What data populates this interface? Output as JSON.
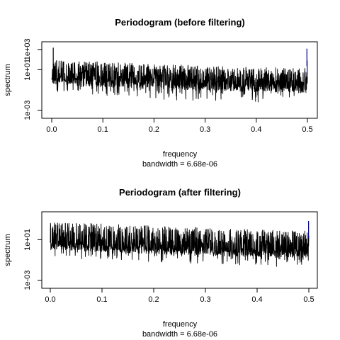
{
  "chart_data": [
    {
      "type": "line",
      "title": "Periodogram (before filtering)",
      "xlabel": "frequency",
      "sublabel": "bandwidth = 6.68e-06",
      "ylabel": "spectrum",
      "y_scale": "log",
      "xlim": [
        0,
        0.5
      ],
      "ylim": [
        0.0003,
        3000
      ],
      "x_ticks": [
        0,
        0.1,
        0.2,
        0.3,
        0.4,
        0.5
      ],
      "x_tick_labels": [
        "0.0",
        "0.1",
        "0.2",
        "0.3",
        "0.4",
        "0.5"
      ],
      "y_ticks": [
        0.001,
        10,
        1000
      ],
      "y_tick_labels": [
        "1e-03",
        "1e+01",
        "1e+03"
      ],
      "series": [
        {
          "color": "#000000",
          "envelope": {
            "x": [
              0.0,
              0.05,
              0.1,
              0.2,
              0.3,
              0.4,
              0.5
            ],
            "upper": [
              90,
              70,
              60,
              40,
              25,
              20,
              15
            ],
            "body": [
              2,
              1.5,
              1.2,
              0.8,
              0.5,
              0.4,
              0.3
            ],
            "lower": [
              0.05,
              0.03,
              0.02,
              0.01,
              0.008,
              0.006,
              0.005
            ]
          },
          "peaks": [
            {
              "x": 0.003,
              "y": 1500
            },
            {
              "x": 0.004,
              "y": 40
            }
          ]
        },
        {
          "color": "#00008b",
          "peaks": [
            {
              "x": 0.499,
              "y": 1200
            },
            {
              "x": 0.4995,
              "y": 80
            }
          ]
        }
      ]
    },
    {
      "type": "line",
      "title": "Periodogram (after filtering)",
      "xlabel": "frequency",
      "sublabel": "bandwidth = 6.68e-06",
      "ylabel": "spectrum",
      "y_scale": "log",
      "xlim": [
        0,
        0.5
      ],
      "ylim": [
        0.0003,
        3000
      ],
      "x_ticks": [
        0,
        0.1,
        0.2,
        0.3,
        0.4,
        0.5
      ],
      "x_tick_labels": [
        "0.0",
        "0.1",
        "0.2",
        "0.3",
        "0.4",
        "0.5"
      ],
      "y_ticks": [
        0.001,
        10
      ],
      "y_tick_labels": [
        "1e-03",
        "1e+01"
      ],
      "series": [
        {
          "color": "#000000",
          "envelope": {
            "x": [
              0.0,
              0.05,
              0.1,
              0.2,
              0.3,
              0.4,
              0.5
            ],
            "upper": [
              600,
              500,
              400,
              250,
              150,
              100,
              80
            ],
            "body": [
              5,
              4,
              3,
              2,
              1.2,
              1,
              0.8
            ],
            "lower": [
              0.2,
              0.1,
              0.08,
              0.05,
              0.03,
              0.02,
              0.02
            ]
          },
          "peaks": []
        },
        {
          "color": "#00008b",
          "peaks": [
            {
              "x": 0.4995,
              "y": 700
            }
          ]
        }
      ]
    }
  ]
}
